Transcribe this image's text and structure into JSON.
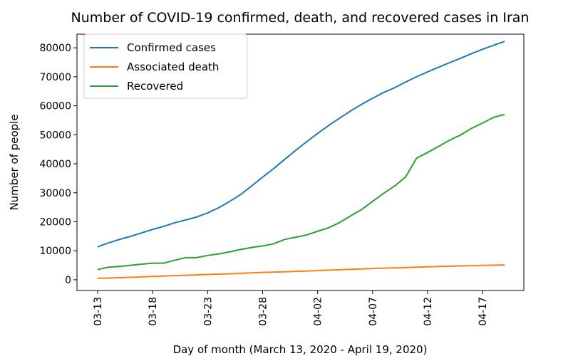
{
  "chart_data": {
    "type": "line",
    "title": "Number of COVID-19 confirmed, death, and recovered cases in Iran",
    "x_label": "Day of month (March 13, 2020 - April 19, 2020)",
    "y_label": "Number of people",
    "categories": [
      "03-13",
      null,
      null,
      null,
      null,
      "03-18",
      null,
      null,
      null,
      null,
      "03-23",
      null,
      null,
      null,
      null,
      "03-28",
      null,
      null,
      null,
      null,
      "04-02",
      null,
      null,
      null,
      null,
      "04-07",
      null,
      null,
      null,
      null,
      "04-12",
      null,
      null,
      null,
      null,
      "04-17",
      null,
      null
    ],
    "series": [
      {
        "name": "Confirmed cases",
        "color": "#1f77b4",
        "values": [
          11364,
          12729,
          13938,
          14991,
          16169,
          17361,
          18407,
          19644,
          20610,
          21638,
          23049,
          24811,
          27017,
          29406,
          32332,
          35408,
          38309,
          41495,
          44605,
          47593,
          50468,
          53183,
          55743,
          58226,
          60500,
          62589,
          64586,
          66220,
          68192,
          70029,
          71686,
          73303,
          74877,
          76389,
          77995,
          79494,
          80868,
          82211
        ]
      },
      {
        "name": "Associated death",
        "color": "#ff7f0e",
        "values": [
          514,
          611,
          724,
          853,
          988,
          1135,
          1284,
          1433,
          1556,
          1685,
          1812,
          1934,
          2077,
          2234,
          2378,
          2517,
          2640,
          2757,
          2898,
          3036,
          3160,
          3294,
          3452,
          3603,
          3739,
          3872,
          3993,
          4110,
          4232,
          4357,
          4474,
          4585,
          4683,
          4777,
          4869,
          4958,
          5031,
          5118
        ]
      },
      {
        "name": "Recovered",
        "color": "#2ca02c",
        "values": [
          3529,
          4339,
          4590,
          4996,
          5389,
          5710,
          5710,
          6745,
          7635,
          7635,
          8376,
          8913,
          9625,
          10457,
          11133,
          11679,
          12391,
          13911,
          14656,
          15473,
          16711,
          17935,
          19736,
          22011,
          24236,
          27039,
          29812,
          32309,
          35465,
          41947,
          43894,
          45983,
          48129,
          49933,
          52229,
          54064,
          55987,
          57023
        ]
      }
    ],
    "ylim": [
      -3700,
      84700
    ],
    "yticks": [
      0,
      10000,
      20000,
      30000,
      40000,
      50000,
      60000,
      70000,
      80000
    ],
    "legend": "upper left"
  }
}
